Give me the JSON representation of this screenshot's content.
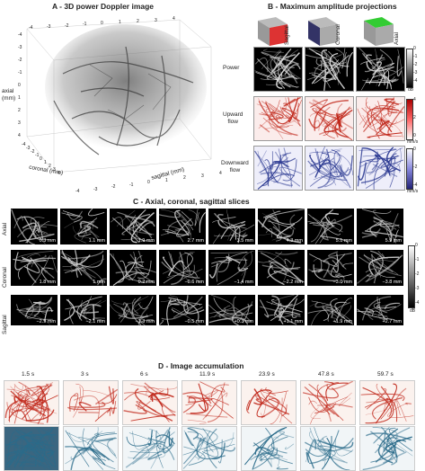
{
  "panels": {
    "a_title": "A - 3D power Doppler image",
    "b_title": "B - Maximum amplitude projections",
    "c_title": "C - Axial, coronal, sagittal slices",
    "d_title": "D - Image accumulation"
  },
  "panel_a": {
    "axis_axial": "axial\n(mm)",
    "axis_coronal": "coronal (mm)",
    "axis_sagittal": "sagittal (mm)",
    "ticks_top": [
      "-4",
      "-3",
      "-2",
      "-1",
      "0",
      "1",
      "2",
      "3",
      "4"
    ],
    "ticks_left": [
      "-4",
      "-3",
      "-2",
      "-1",
      "0",
      "1",
      "2",
      "3",
      "4"
    ],
    "ticks_coronal": [
      "-4",
      "-3",
      "-2",
      "-1",
      "0",
      "1",
      "2",
      "3",
      "4"
    ],
    "ticks_sagittal": [
      "-4",
      "-3",
      "-2",
      "-1",
      "0",
      "1",
      "2",
      "3",
      "4"
    ]
  },
  "panel_b": {
    "col_labels": [
      "Sagittal",
      "Coronal",
      "Axial"
    ],
    "row_labels": [
      "Power",
      "Upward\nflow",
      "Downward\nflow"
    ],
    "power_cbar": {
      "ticks": [
        "0",
        "-1",
        "-2",
        "-3",
        "-4"
      ],
      "unit": "dB"
    },
    "up_cbar": {
      "ticks": [
        "4",
        "2",
        "0"
      ],
      "unit": "mm/s"
    },
    "down_cbar": {
      "ticks": [
        "0",
        "-2",
        "-4"
      ],
      "unit": "mm/s"
    }
  },
  "panel_c": {
    "row_labels": [
      "Axial",
      "Coronal",
      "Sagittal"
    ],
    "axial": [
      "0.3 mm",
      "1.1 mm",
      "1.9 mm",
      "2.7 mm",
      "3.5 mm",
      "4.3 mm",
      "5.1 mm",
      "5.9 mm"
    ],
    "coronal": [
      "1.8 mm",
      "1 mm",
      "0.2 mm",
      "−0.6 mm",
      "−1.4 mm",
      "−2.2 mm",
      "−3.0 mm",
      "−3.8 mm"
    ],
    "sagittal": [
      "−2.9 mm",
      "−2.1 mm",
      "−1.3 mm",
      "−0.5 mm",
      "+0.3 mm",
      "+1.1 mm",
      "+1.9 mm",
      "+2.7 mm"
    ],
    "cbar": {
      "ticks": [
        "0",
        "-1",
        "-2",
        "-3",
        "-4"
      ],
      "unit": "dB"
    }
  },
  "panel_d": {
    "times": [
      "1.5 s",
      "3 s",
      "6 s",
      "11.9 s",
      "23.9 s",
      "47.8 s",
      "59.7 s"
    ]
  },
  "colors": {
    "upward": "#c0271a",
    "downward": "#2c3a92",
    "power": "#000000"
  }
}
